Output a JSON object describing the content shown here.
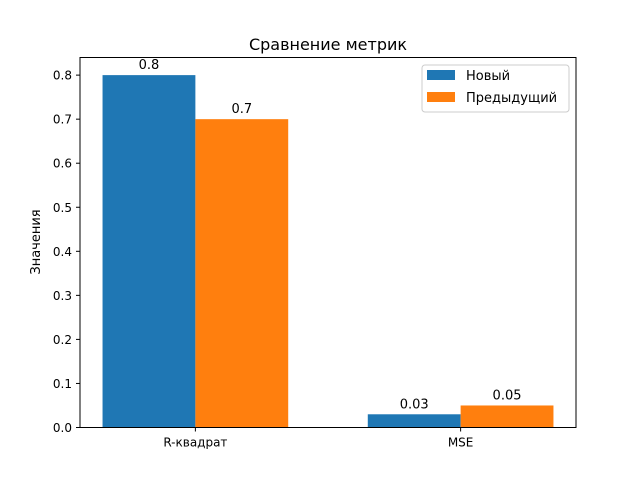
{
  "chart_data": {
    "type": "bar",
    "title": "Сравнение метрик",
    "xlabel": "",
    "ylabel": "Значения",
    "categories": [
      "R-квадрат",
      "MSE"
    ],
    "series": [
      {
        "name": "Новый",
        "color": "#1f77b4",
        "values": [
          0.8,
          0.03
        ],
        "labels": [
          "0.8",
          "0.03"
        ]
      },
      {
        "name": "Предыдущий",
        "color": "#ff7f0e",
        "values": [
          0.7,
          0.05
        ],
        "labels": [
          "0.7",
          "0.05"
        ]
      }
    ],
    "ylim": [
      0,
      0.84
    ],
    "yticks": [
      "0.0",
      "0.1",
      "0.2",
      "0.3",
      "0.4",
      "0.5",
      "0.6",
      "0.7",
      "0.8"
    ],
    "legend": "top-right",
    "grid": false
  }
}
